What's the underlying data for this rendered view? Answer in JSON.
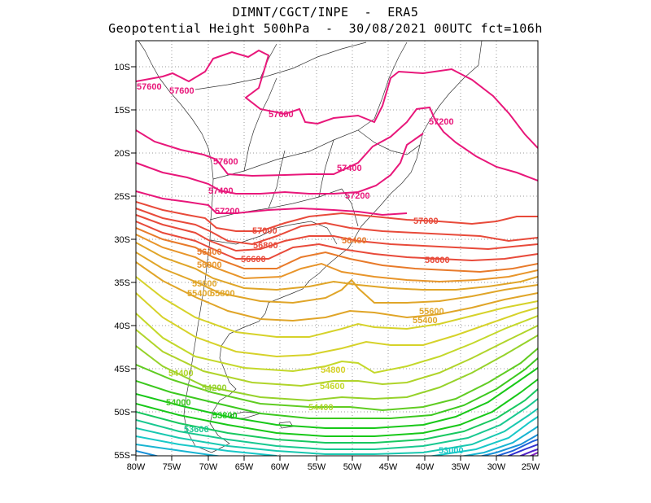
{
  "title_line1": "DIMNT/CGCT/INPE  -  ERA5",
  "title_line2": "Geopotential Height 500hPa  -  30/08/2021 00UTC fct=106h",
  "lat_ticks": [
    "10S",
    "15S",
    "20S",
    "25S",
    "30S",
    "35S",
    "40S",
    "45S",
    "50S",
    "55S"
  ],
  "lon_ticks": [
    "80W",
    "75W",
    "70W",
    "65W",
    "60W",
    "55W",
    "50W",
    "45W",
    "40W",
    "35W",
    "30W",
    "25W"
  ],
  "contour_labels": [
    {
      "text": "57600",
      "color": "#e8177a"
    },
    {
      "text": "57600",
      "color": "#e8177a"
    },
    {
      "text": "57600",
      "color": "#e8177a"
    },
    {
      "text": "57600",
      "color": "#e8177a"
    },
    {
      "text": "57400",
      "color": "#e8177a"
    },
    {
      "text": "57400",
      "color": "#e8177a"
    },
    {
      "text": "57200",
      "color": "#e8177a"
    },
    {
      "text": "57200",
      "color": "#e8177a"
    },
    {
      "text": "57200",
      "color": "#e8177a"
    },
    {
      "text": "57000",
      "color": "#e84a3a"
    },
    {
      "text": "57000",
      "color": "#e84a3a"
    },
    {
      "text": "56800",
      "color": "#e84a3a"
    },
    {
      "text": "56600",
      "color": "#e84a3a"
    },
    {
      "text": "56600",
      "color": "#e84a3a"
    },
    {
      "text": "56400",
      "color": "#e87a2a"
    },
    {
      "text": "56400",
      "color": "#e87a2a"
    },
    {
      "text": "56000",
      "color": "#e8952a"
    },
    {
      "text": "55600",
      "color": "#e0a528"
    },
    {
      "text": "55800",
      "color": "#e0a528"
    },
    {
      "text": "55400",
      "color": "#e0a528"
    },
    {
      "text": "55600",
      "color": "#e0a528"
    },
    {
      "text": "55400",
      "color": "#e0a528"
    },
    {
      "text": "54800",
      "color": "#d6d22a"
    },
    {
      "text": "54600",
      "color": "#c4d82a"
    },
    {
      "text": "54400",
      "color": "#b0d42a"
    },
    {
      "text": "54400",
      "color": "#b0d42a"
    },
    {
      "text": "54200",
      "color": "#96d22a"
    },
    {
      "text": "54000",
      "color": "#3cc81e"
    },
    {
      "text": "53800",
      "color": "#18c818"
    },
    {
      "text": "53600",
      "color": "#18c890"
    },
    {
      "text": "53000",
      "color": "#18c8c8"
    }
  ]
}
